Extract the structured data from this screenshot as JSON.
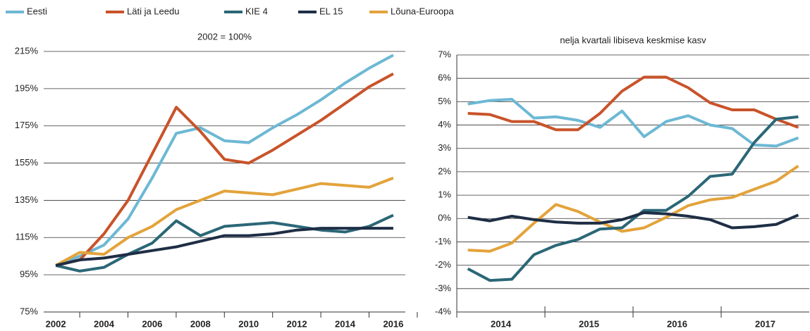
{
  "chart_data": [
    {
      "type": "line",
      "subtitle": "2002 = 100%",
      "x": [
        2002,
        2003,
        2004,
        2005,
        2006,
        2007,
        2008,
        2009,
        2010,
        2011,
        2012,
        2013,
        2014,
        2015,
        2016
      ],
      "xlim": [
        2001.5,
        2016.5
      ],
      "xticks": [
        2002,
        2004,
        2006,
        2008,
        2010,
        2012,
        2014,
        2016
      ],
      "ylim": [
        75,
        215
      ],
      "yticks": [
        {
          "value": 75,
          "label": "75%"
        },
        {
          "value": 95,
          "label": "95%"
        },
        {
          "value": 115,
          "label": "115%"
        },
        {
          "value": 135,
          "label": "135%"
        },
        {
          "value": 155,
          "label": "155%"
        },
        {
          "value": 175,
          "label": "175%"
        },
        {
          "value": 195,
          "label": "195%"
        },
        {
          "value": 215,
          "label": "215%"
        }
      ],
      "grid": true,
      "series": [
        {
          "name": "Eesti",
          "color": "#6db8d4",
          "values": [
            100,
            105,
            111,
            125,
            147,
            171,
            174,
            167,
            166,
            174,
            181,
            189,
            198,
            206,
            213
          ]
        },
        {
          "name": "Läti ja Leedu",
          "color": "#c9532a",
          "values": [
            100,
            103,
            117,
            135,
            160,
            185,
            172,
            157,
            155,
            162,
            170,
            178,
            187,
            196,
            203
          ]
        },
        {
          "name": "KIE 4",
          "color": "#2b6777",
          "values": [
            100,
            97,
            99,
            106,
            112,
            124,
            116,
            121,
            122,
            123,
            121,
            119,
            118,
            121,
            127
          ]
        },
        {
          "name": "EL 15",
          "color": "#1e2e45",
          "values": [
            100,
            103,
            104,
            106,
            108,
            110,
            113,
            116,
            116,
            117,
            119,
            120,
            120,
            120,
            120
          ]
        },
        {
          "name": "Lõuna-Euroopa",
          "color": "#e3a33b",
          "values": [
            100,
            107,
            106,
            115,
            121,
            130,
            135,
            140,
            139,
            138,
            141,
            144,
            143,
            142,
            147
          ]
        }
      ]
    },
    {
      "type": "line",
      "subtitle": "nelja kvartali libiseva keskmise kasv",
      "categories": [
        "2014",
        null,
        null,
        null,
        "2015",
        null,
        null,
        null,
        "2016",
        null,
        null,
        null,
        "2017",
        null,
        null,
        null
      ],
      "ylim": [
        -4,
        7
      ],
      "yticks": [
        {
          "value": -4,
          "label": "-4%"
        },
        {
          "value": -3,
          "label": "-3%"
        },
        {
          "value": -2,
          "label": "-2%"
        },
        {
          "value": -1,
          "label": "-1%"
        },
        {
          "value": 0,
          "label": "0%"
        },
        {
          "value": 1,
          "label": "1%"
        },
        {
          "value": 2,
          "label": "2%"
        },
        {
          "value": 3,
          "label": "3%"
        },
        {
          "value": 4,
          "label": "4%"
        },
        {
          "value": 5,
          "label": "5%"
        },
        {
          "value": 6,
          "label": "6%"
        },
        {
          "value": 7,
          "label": "7%"
        }
      ],
      "grid": true,
      "series": [
        {
          "values": [
            4.9,
            5.05,
            5.1,
            4.3,
            4.35,
            4.2,
            3.9,
            4.6,
            3.5,
            4.15,
            4.4,
            4.0,
            3.85,
            3.15,
            3.1,
            3.45
          ]
        },
        {
          "values": [
            4.5,
            4.45,
            4.15,
            4.15,
            3.8,
            3.8,
            4.5,
            5.45,
            6.05,
            6.05,
            5.6,
            4.95,
            4.65,
            4.65,
            4.25,
            3.9
          ]
        },
        {
          "values": [
            -2.15,
            -2.65,
            -2.6,
            -1.55,
            -1.15,
            -0.9,
            -0.45,
            -0.4,
            0.35,
            0.35,
            0.95,
            1.8,
            1.9,
            3.25,
            4.25,
            4.35
          ]
        },
        {
          "values": [
            0.05,
            -0.1,
            0.1,
            -0.05,
            -0.15,
            -0.2,
            -0.2,
            -0.05,
            0.25,
            0.2,
            0.1,
            -0.05,
            -0.4,
            -0.35,
            -0.25,
            0.15
          ]
        },
        {
          "values": [
            -1.35,
            -1.4,
            -1.05,
            -0.2,
            0.6,
            0.3,
            -0.15,
            -0.55,
            -0.4,
            0.05,
            0.55,
            0.8,
            0.9,
            1.25,
            1.6,
            2.25
          ]
        }
      ]
    }
  ]
}
